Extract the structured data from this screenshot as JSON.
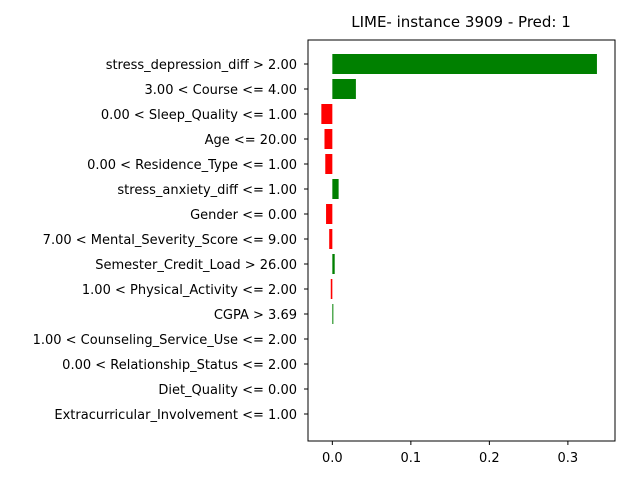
{
  "chart_data": {
    "type": "bar",
    "orientation": "horizontal",
    "title": "LIME- instance 3909 - Pred: 1",
    "xlabel": "",
    "ylabel": "",
    "xlim": [
      -0.031,
      0.36
    ],
    "xticks": [
      0.0,
      0.1,
      0.2,
      0.3
    ],
    "xtick_labels": [
      "0.0",
      "0.1",
      "0.2",
      "0.3"
    ],
    "grid": false,
    "colors": {
      "positive": "#008000",
      "negative": "#ff0000"
    },
    "categories": [
      "stress_depression_diff > 2.00",
      "3.00 < Course <= 4.00",
      "0.00 < Sleep_Quality <= 1.00",
      "Age <= 20.00",
      "0.00 < Residence_Type <= 1.00",
      "stress_anxiety_diff <= 1.00",
      "Gender <= 0.00",
      "7.00 < Mental_Severity_Score <= 9.00",
      "Semester_Credit_Load > 26.00",
      "1.00 < Physical_Activity <= 2.00",
      "CGPA > 3.69",
      "1.00 < Counseling_Service_Use <= 2.00",
      "0.00 < Relationship_Status <= 2.00",
      "Diet_Quality <= 0.00",
      "Extracurricular_Involvement <= 1.00"
    ],
    "values": [
      0.337,
      0.03,
      -0.014,
      -0.01,
      -0.009,
      0.008,
      -0.008,
      -0.004,
      0.003,
      -0.002,
      0.001,
      0.0,
      0.0,
      0.0,
      0.0
    ]
  }
}
